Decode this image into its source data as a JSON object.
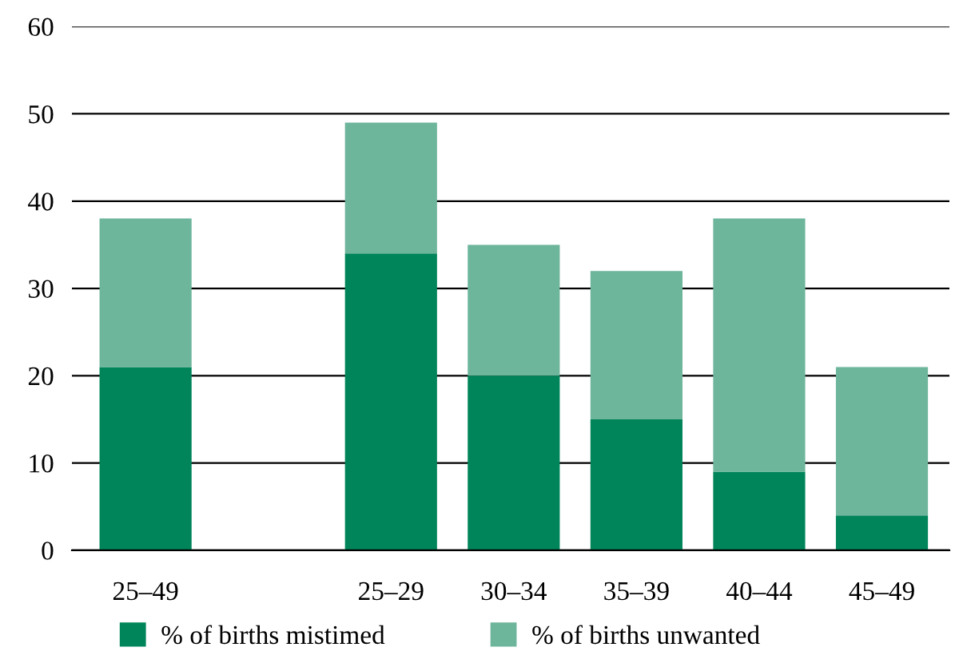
{
  "chart_data": {
    "type": "bar",
    "stacked": true,
    "categories": [
      "25–49",
      null,
      "25–29",
      "30–34",
      "35–39",
      "40–44",
      "45–49"
    ],
    "series": [
      {
        "name": "% of births mistimed",
        "color": "#00845a",
        "values": [
          21,
          null,
          34,
          20,
          15,
          9,
          4
        ]
      },
      {
        "name": "% of births unwanted",
        "color": "#6db59b",
        "values": [
          17,
          null,
          15,
          15,
          17,
          29,
          17
        ]
      }
    ],
    "ylim": [
      0,
      60
    ],
    "yticks": [
      0,
      10,
      20,
      30,
      40,
      50,
      60
    ],
    "grid": "y",
    "legend": "bottom"
  }
}
